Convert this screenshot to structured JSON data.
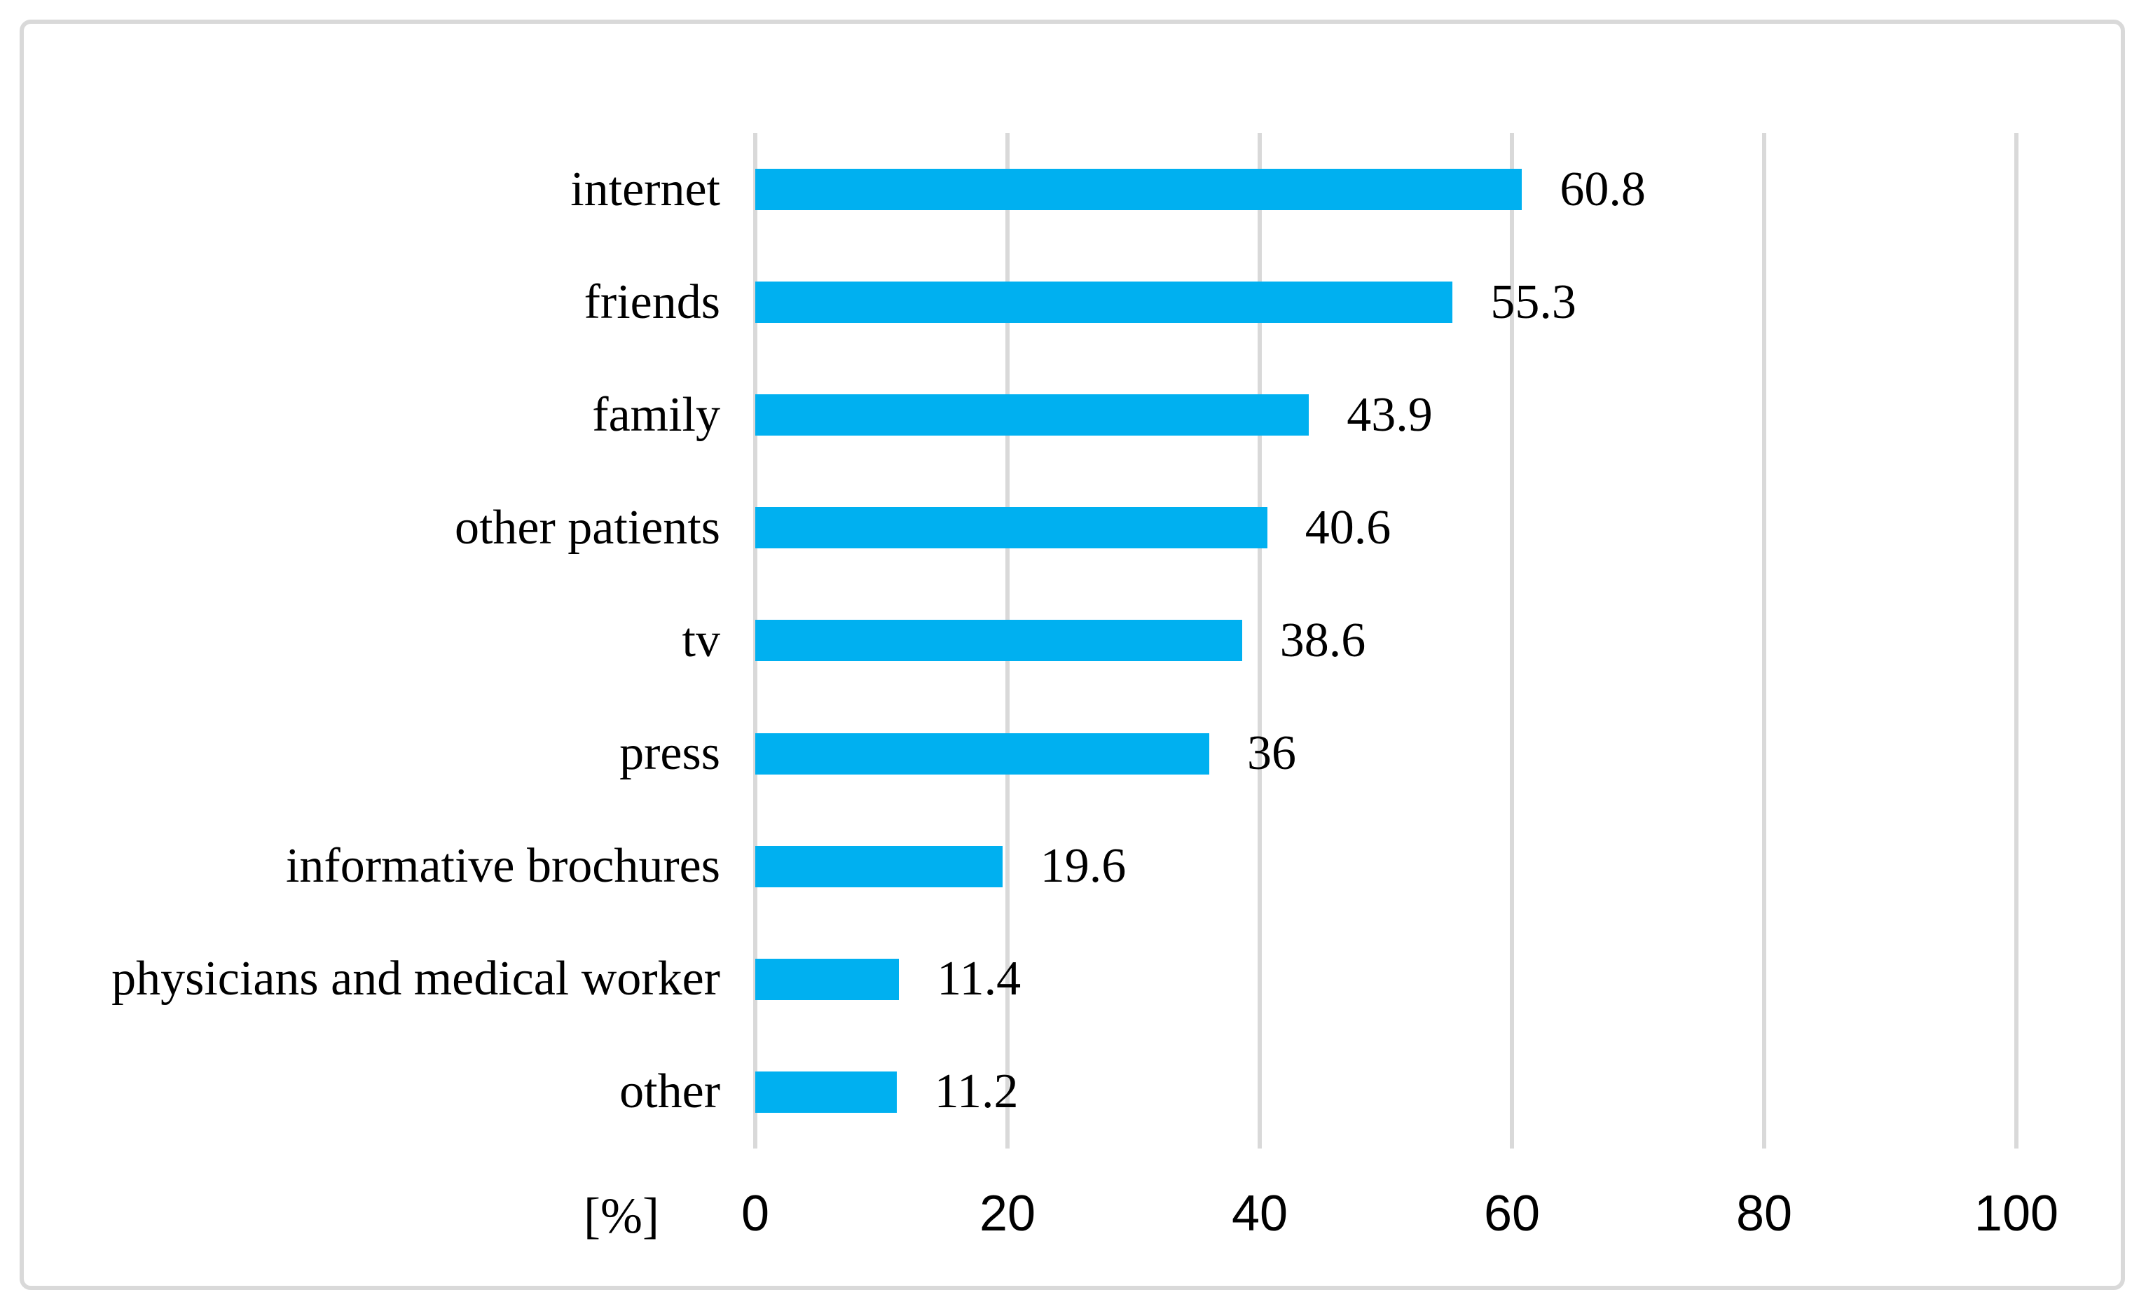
{
  "figure": {
    "background": "#ffffff",
    "frame_border_color": "#d9d9d9"
  },
  "chart_data": {
    "type": "bar",
    "orientation": "horizontal",
    "title": "",
    "xlabel": "[%]",
    "ylabel": "",
    "categories": [
      "internet",
      "friends",
      "family",
      "other patients",
      "tv",
      "press",
      "informative brochures",
      "physicians and medical worker",
      "other"
    ],
    "values": [
      60.8,
      55.3,
      43.9,
      40.6,
      38.6,
      36,
      19.6,
      11.4,
      11.2
    ],
    "value_labels": [
      "60.8",
      "55.3",
      "43.9",
      "40.6",
      "38.6",
      "36",
      "19.6",
      "11.4",
      "11.2"
    ],
    "x_ticks": [
      0,
      20,
      40,
      60,
      80,
      100
    ],
    "xlim": [
      0,
      100
    ],
    "legend": "none",
    "grid": "vertical-major",
    "bar_color": "#00b0f0",
    "gridline_color": "#d9d9d9",
    "label_color": "#000000"
  }
}
